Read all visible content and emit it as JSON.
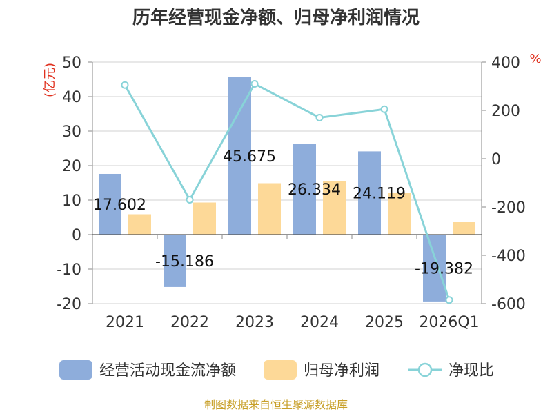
{
  "chart_data": {
    "type": "bar",
    "title": "历年经营现金净额、归母净利润情况",
    "categories": [
      "2021",
      "2022",
      "2023",
      "2024",
      "2025",
      "2026Q1"
    ],
    "series": [
      {
        "name": "经营活动现金流净额",
        "type": "bar",
        "axis": "left",
        "color": "#8eaddb",
        "values": [
          17.602,
          -15.186,
          45.675,
          26.334,
          24.119,
          -19.382
        ]
      },
      {
        "name": "归母净利润",
        "type": "bar",
        "axis": "left",
        "color": "#fdd998",
        "values": [
          5.9,
          9.3,
          14.9,
          15.4,
          12.0,
          3.6
        ]
      },
      {
        "name": "净现比",
        "type": "line",
        "axis": "right",
        "color": "#88d3d8",
        "values": [
          305,
          -170,
          310,
          170,
          205,
          -585
        ]
      }
    ],
    "data_labels": [
      "17.602",
      "-15.186",
      "45.675",
      "26.334",
      "24.119",
      "-19.382"
    ],
    "y_left": {
      "unit": "(亿元)",
      "ylim": [
        -20,
        50
      ],
      "ticks": [
        50,
        40,
        30,
        20,
        10,
        0,
        -10,
        -20
      ]
    },
    "y_right": {
      "unit": "%",
      "ylim": [
        -600,
        400
      ],
      "ticks": [
        400,
        200,
        0,
        -200,
        -400,
        -600
      ]
    },
    "legend": {
      "position": "bottom"
    },
    "grid": true,
    "source": "制图数据来自恒生聚源数据库"
  }
}
